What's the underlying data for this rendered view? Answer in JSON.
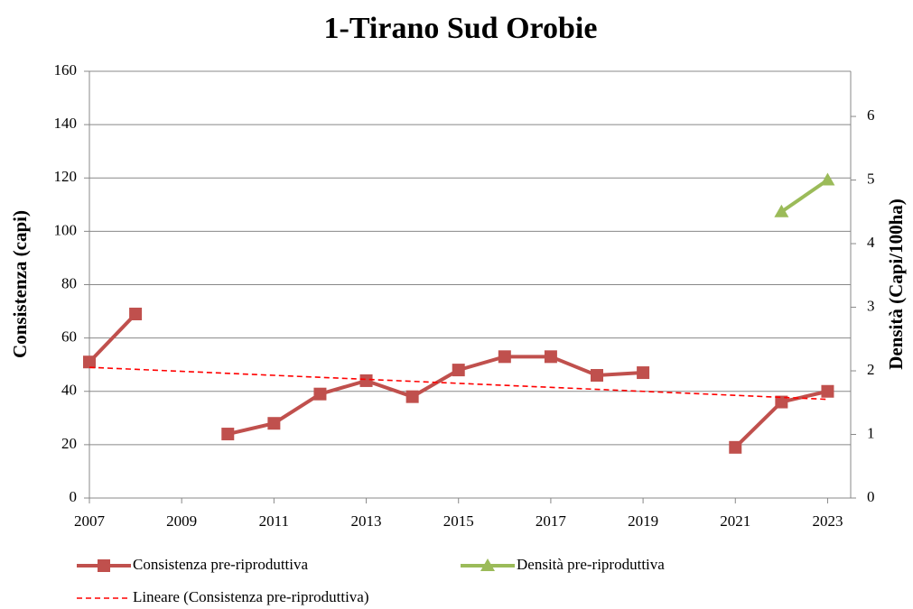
{
  "chart_data": {
    "type": "line",
    "title": "1-Tirano Sud Orobie",
    "y_label": "Consistenza (capi)",
    "y2_label": "Densità (Capi/100ha)",
    "x": [
      2007,
      2008,
      2009,
      2010,
      2011,
      2012,
      2013,
      2014,
      2015,
      2016,
      2017,
      2018,
      2019,
      2020,
      2021,
      2022,
      2023
    ],
    "series": [
      {
        "name": "Consistenza pre-riproduttiva",
        "color": "#c0504d",
        "marker": "square",
        "values": [
          51,
          69,
          null,
          24,
          28,
          39,
          44,
          38,
          48,
          53,
          53,
          46,
          47,
          null,
          19,
          36,
          40
        ]
      },
      {
        "name": "Densità pre-riproduttiva",
        "color": "#9bbb59",
        "marker": "triangle",
        "axis": "y2",
        "values": [
          null,
          null,
          null,
          null,
          null,
          null,
          null,
          null,
          null,
          null,
          null,
          null,
          null,
          null,
          null,
          4.5,
          5.0
        ]
      },
      {
        "name": "Lineare (Consistenza pre-riproduttiva)",
        "color": "#ff0000",
        "dashed": true,
        "values": [
          49,
          48.25,
          47.5,
          46.75,
          46,
          45.25,
          44.5,
          43.75,
          43,
          42.25,
          41.5,
          40.75,
          40,
          39.25,
          38.5,
          37.75,
          37
        ]
      }
    ],
    "xlim": [
      2007,
      2023.5
    ],
    "xticks": [
      2007,
      2009,
      2011,
      2013,
      2015,
      2017,
      2019,
      2021,
      2023
    ],
    "ylim": [
      0,
      160
    ],
    "yticks": [
      0,
      20,
      40,
      60,
      80,
      100,
      120,
      140,
      160
    ],
    "y2lim": [
      0,
      6.71
    ],
    "y2ticks": [
      0,
      1,
      2,
      3,
      4,
      5,
      6
    ],
    "grid": true
  }
}
